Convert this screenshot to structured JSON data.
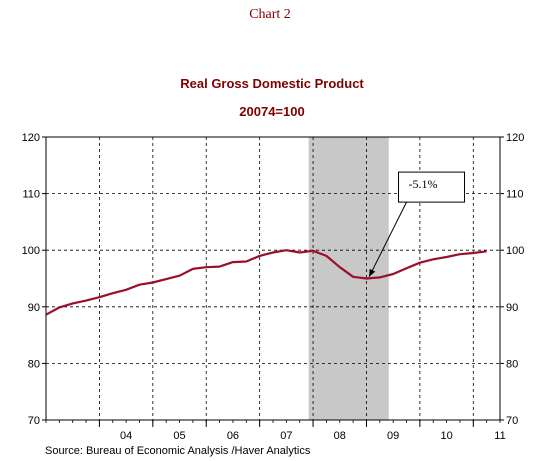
{
  "page": {
    "chart_number": "Chart 2",
    "source": "Source:  Bureau of Economic Analysis /Haver Analytics"
  },
  "chart_data": {
    "type": "line",
    "title": "Real Gross Domestic Product",
    "subtitle": "20074=100",
    "xlabel": "",
    "ylabel": "",
    "ylim": [
      70,
      120
    ],
    "yticks": [
      70,
      80,
      90,
      100,
      110,
      120
    ],
    "xlim": [
      2003,
      2011.5
    ],
    "xtick_labels": [
      "04",
      "05",
      "06",
      "07",
      "08",
      "09",
      "10",
      "11"
    ],
    "grid": true,
    "recession_shading": [
      2007.917,
      2009.417
    ],
    "annotation": {
      "text": "-5.1%",
      "x": 2009.05,
      "y": 95.3
    },
    "series": [
      {
        "color": "#9b0f2b",
        "x": [
          2003.0,
          2003.25,
          2003.5,
          2003.75,
          2004.0,
          2004.25,
          2004.5,
          2004.75,
          2005.0,
          2005.25,
          2005.5,
          2005.75,
          2006.0,
          2006.25,
          2006.5,
          2006.75,
          2007.0,
          2007.25,
          2007.5,
          2007.75,
          2008.0,
          2008.25,
          2008.5,
          2008.75,
          2009.0,
          2009.25,
          2009.5,
          2009.75,
          2010.0,
          2010.25,
          2010.5,
          2010.75,
          2011.0,
          2011.25
        ],
        "values": [
          88.6,
          89.9,
          90.6,
          91.1,
          91.7,
          92.4,
          93.0,
          93.9,
          94.3,
          94.9,
          95.5,
          96.7,
          97.0,
          97.1,
          97.9,
          98.0,
          99.0,
          99.6,
          100.0,
          99.6,
          99.9,
          99.0,
          97.0,
          95.3,
          95.0,
          95.2,
          95.8,
          96.8,
          97.8,
          98.4,
          98.8,
          99.3,
          99.5,
          99.8
        ]
      }
    ]
  }
}
